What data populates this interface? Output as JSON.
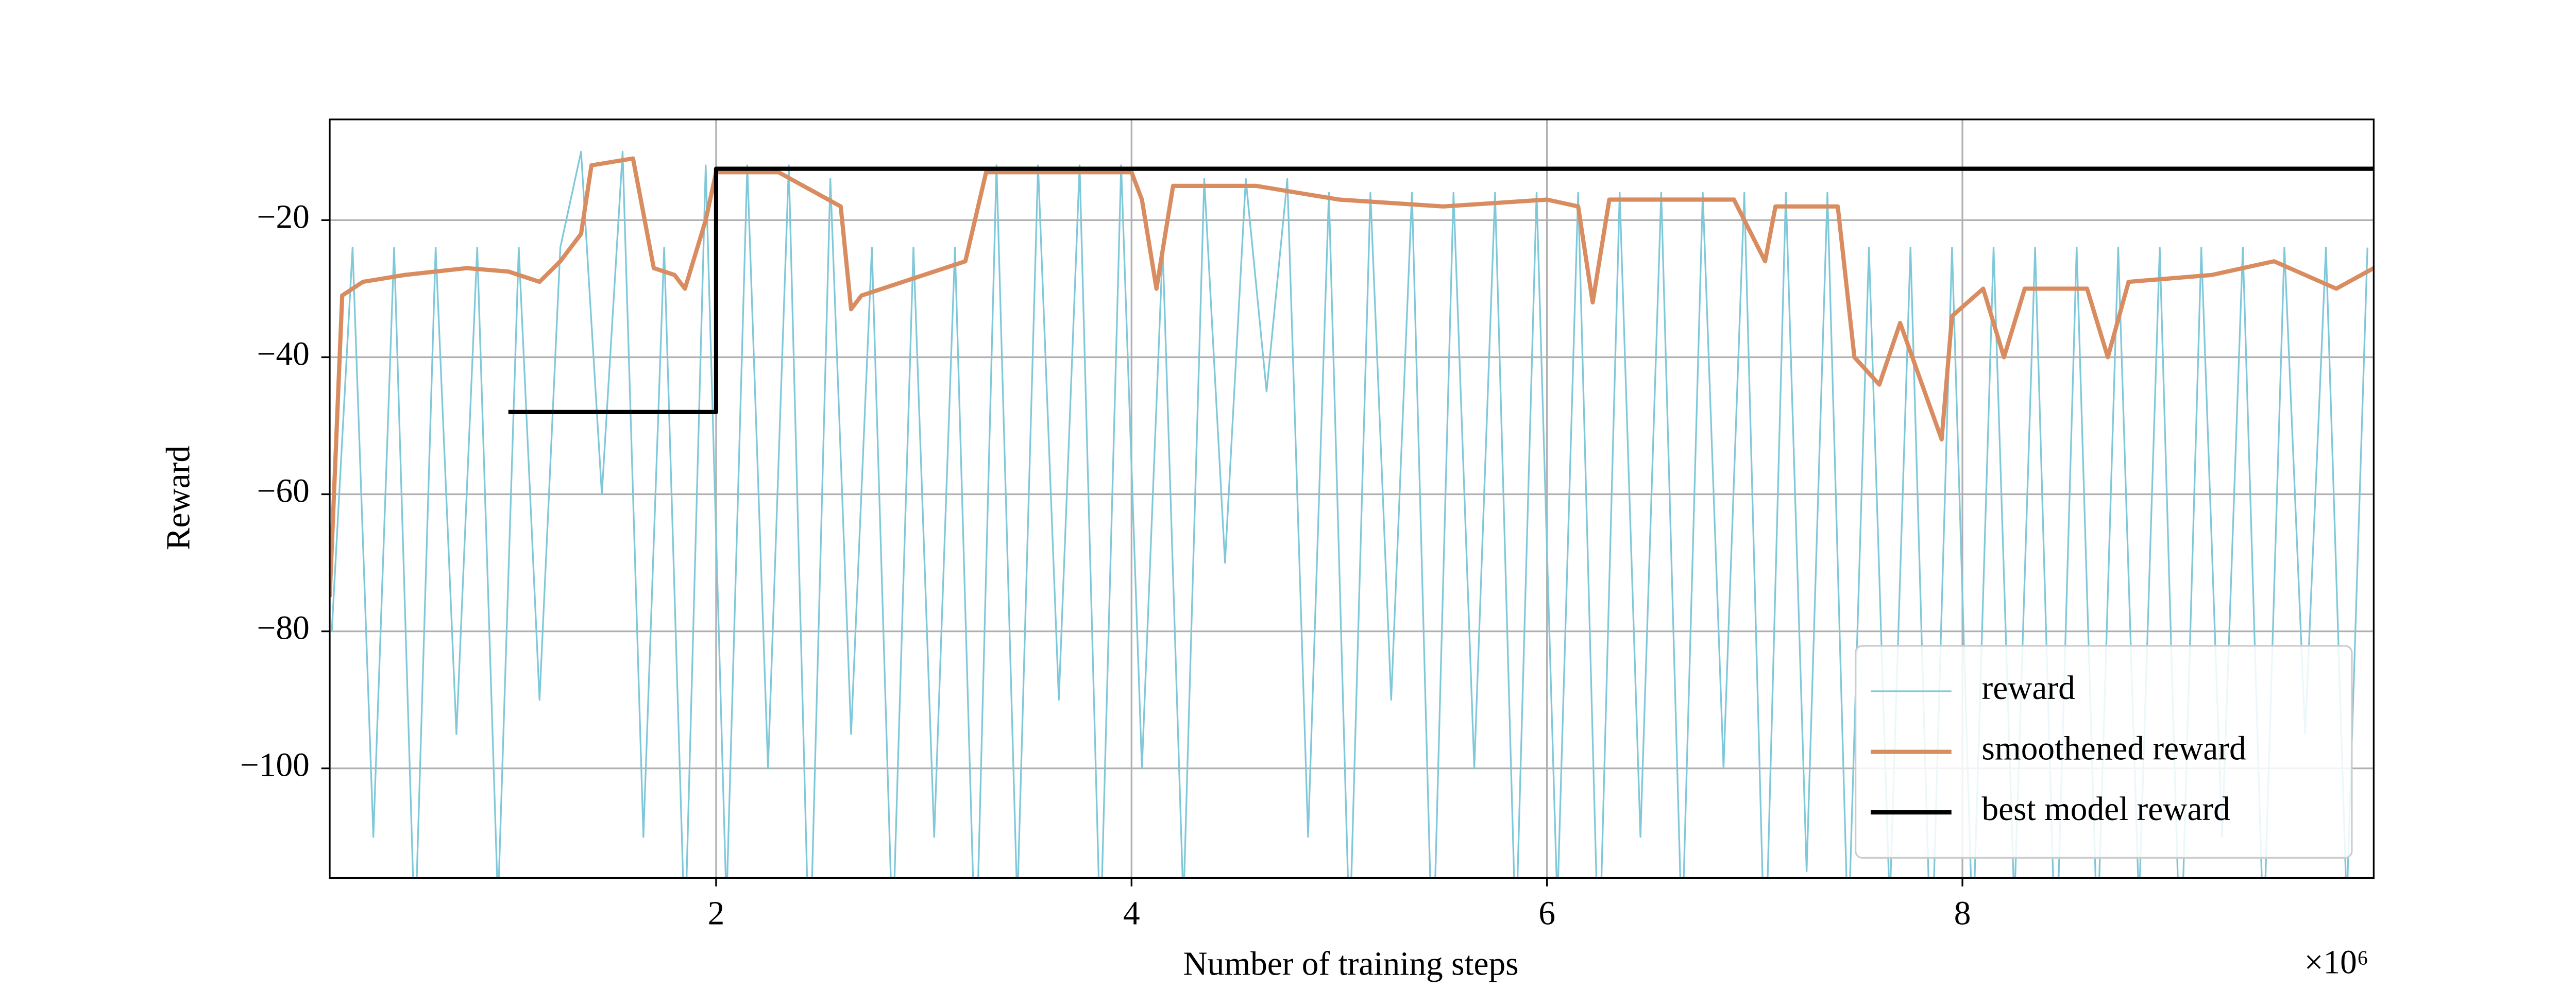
{
  "chart_data": {
    "type": "line",
    "xlabel": "Number of training steps",
    "ylabel": "Reward",
    "x_offset_label": "×10⁶",
    "xlim": [
      0.14,
      9.98
    ],
    "ylim": [
      -116,
      -5.3
    ],
    "xticks": [
      2,
      4,
      6,
      8
    ],
    "yticks": [
      {
        "value": -20,
        "label": "−20"
      },
      {
        "value": -40,
        "label": "−40"
      },
      {
        "value": -60,
        "label": "−60"
      },
      {
        "value": -80,
        "label": "−80"
      },
      {
        "value": -100,
        "label": "−100"
      }
    ],
    "grid": true,
    "legend": "lower right",
    "series": [
      {
        "name": "reward",
        "color": "#7fc8da",
        "x": [
          0.15,
          0.25,
          0.35,
          0.45,
          0.55,
          0.65,
          0.75,
          0.85,
          0.95,
          1.05,
          1.15,
          1.25,
          1.35,
          1.45,
          1.55,
          1.65,
          1.75,
          1.85,
          1.95,
          2.05,
          2.15,
          2.25,
          2.35,
          2.45,
          2.55,
          2.65,
          2.75,
          2.85,
          2.95,
          3.05,
          3.15,
          3.25,
          3.35,
          3.45,
          3.55,
          3.65,
          3.75,
          3.85,
          3.95,
          4.05,
          4.15,
          4.25,
          4.35,
          4.45,
          4.55,
          4.65,
          4.75,
          4.85,
          4.95,
          5.05,
          5.15,
          5.25,
          5.35,
          5.45,
          5.55,
          5.65,
          5.75,
          5.85,
          5.95,
          6.05,
          6.15,
          6.25,
          6.35,
          6.45,
          6.55,
          6.65,
          6.75,
          6.85,
          6.95,
          7.05,
          7.15,
          7.25,
          7.35,
          7.45,
          7.55,
          7.65,
          7.75,
          7.85,
          7.95,
          8.05,
          8.15,
          8.25,
          8.35,
          8.45,
          8.55,
          8.65,
          8.75,
          8.85,
          8.95,
          9.05,
          9.15,
          9.25,
          9.35,
          9.45,
          9.55,
          9.65,
          9.75,
          9.85,
          9.95
        ],
        "values": [
          -80,
          -24,
          -110,
          -24,
          -125,
          -24,
          -95,
          -24,
          -120,
          -24,
          -90,
          -24,
          -10,
          -60,
          -10,
          -110,
          -24,
          -125,
          -12,
          -120,
          -12,
          -100,
          -12,
          -130,
          -14,
          -95,
          -24,
          -125,
          -24,
          -110,
          -24,
          -130,
          -12,
          -120,
          -12,
          -90,
          -12,
          -125,
          -12,
          -100,
          -24,
          -120,
          -14,
          -70,
          -14,
          -45,
          -14,
          -110,
          -16,
          -125,
          -16,
          -90,
          -16,
          -130,
          -16,
          -100,
          -16,
          -125,
          -16,
          -120,
          -16,
          -130,
          -16,
          -110,
          -16,
          -125,
          -16,
          -100,
          -16,
          -130,
          -16,
          -115,
          -16,
          -125,
          -24,
          -120,
          -24,
          -130,
          -24,
          -125,
          -24,
          -120,
          -24,
          -130,
          -24,
          -125,
          -24,
          -120,
          -24,
          -130,
          -24,
          -110,
          -24,
          -125,
          -24,
          -95,
          -24,
          -120,
          -24
        ]
      },
      {
        "name": "smoothened reward",
        "color": "#d98c5f",
        "x": [
          0.14,
          0.2,
          0.3,
          0.5,
          0.8,
          1.0,
          1.15,
          1.25,
          1.35,
          1.4,
          1.6,
          1.7,
          1.8,
          1.85,
          1.95,
          2.0,
          2.3,
          2.6,
          2.65,
          2.7,
          2.9,
          3.2,
          3.3,
          3.6,
          4.0,
          4.05,
          4.12,
          4.2,
          4.6,
          5.0,
          5.5,
          6.0,
          6.15,
          6.22,
          6.3,
          6.9,
          7.05,
          7.1,
          7.4,
          7.48,
          7.6,
          7.7,
          7.9,
          7.95,
          8.1,
          8.2,
          8.3,
          8.6,
          8.7,
          8.8,
          9.2,
          9.5,
          9.8,
          9.98
        ],
        "values": [
          -75,
          -31,
          -29,
          -28,
          -27,
          -27.5,
          -29,
          -26,
          -22,
          -12,
          -11,
          -27,
          -28,
          -30,
          -20,
          -13,
          -13,
          -18,
          -33,
          -31,
          -29,
          -26,
          -13,
          -13,
          -13,
          -17,
          -30,
          -15,
          -15,
          -17,
          -18,
          -17,
          -18,
          -32,
          -17,
          -17,
          -26,
          -18,
          -18,
          -40,
          -44,
          -35,
          -52,
          -34,
          -30,
          -40,
          -30,
          -30,
          -40,
          -29,
          -28,
          -26,
          -30,
          -27
        ]
      },
      {
        "name": "best model reward",
        "color": "#000000",
        "x": [
          1.0,
          2.0,
          2.0,
          9.98
        ],
        "values": [
          -48,
          -48,
          -12.5,
          -12.5
        ]
      }
    ]
  }
}
